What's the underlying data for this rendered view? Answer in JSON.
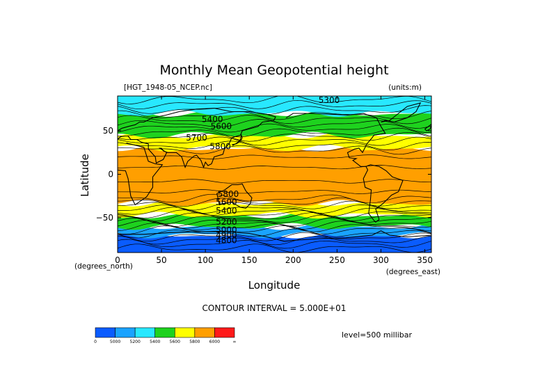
{
  "figure": {
    "title": "Monthly Mean Geopotential height",
    "file_label": "[HGT_1948-05_NCEP.nc]",
    "units_label": "(units:m)",
    "contour_interval": "CONTOUR INTERVAL = 5.000E+01",
    "level": "level=500 millibar",
    "x_unit_note": "(degrees_east)",
    "y_unit_note": "(degrees_north)"
  },
  "chart_data": {
    "type": "heatmap",
    "title": "Monthly Mean Geopotential height",
    "xlabel": "Longitude",
    "ylabel": "Latitude",
    "xlim": [
      0,
      357.5
    ],
    "ylim": [
      -90,
      90
    ],
    "xticks": [
      0,
      50,
      100,
      150,
      200,
      250,
      300,
      350
    ],
    "yticks": [
      -50,
      0,
      50
    ],
    "grid": false,
    "colorbar": {
      "colors": [
        "#0a5cff",
        "#1aa3ff",
        "#28e8ff",
        "#1ed21e",
        "#ffff00",
        "#ff9f00",
        "#ff1a1a"
      ],
      "labels": [
        "0",
        "5000",
        "5200",
        "5400",
        "5600",
        "5800",
        "6000",
        "∞"
      ]
    },
    "contour_labels": [
      {
        "lon": 241,
        "lat": 82,
        "text": "5300"
      },
      {
        "lon": 108,
        "lat": 60,
        "text": "5400"
      },
      {
        "lon": 118,
        "lat": 52,
        "text": "5600"
      },
      {
        "lon": 90,
        "lat": 39,
        "text": "5700"
      },
      {
        "lon": 117,
        "lat": 29,
        "text": "5800"
      },
      {
        "lon": 126,
        "lat": -26,
        "text": "5800"
      },
      {
        "lon": 124,
        "lat": -35,
        "text": "5600"
      },
      {
        "lon": 124,
        "lat": -45,
        "text": "5400"
      },
      {
        "lon": 124,
        "lat": -58,
        "text": "5200"
      },
      {
        "lon": 124,
        "lat": -67,
        "text": "5000"
      },
      {
        "lon": 124,
        "lat": -73,
        "text": "4900"
      },
      {
        "lon": 124,
        "lat": -79,
        "text": "4800"
      }
    ],
    "bands": [
      {
        "level": 5000,
        "color": "#0a5cff",
        "north": -70,
        "south": -90
      },
      {
        "level": 5200,
        "color": "#1aa3ff",
        "north": -60,
        "south": -70
      },
      {
        "level": 5400,
        "color": "#1ed21e",
        "north": -47,
        "south": -60
      },
      {
        "level": 5600,
        "color": "#ffff00",
        "north": -33,
        "south": -47
      },
      {
        "level": 5800,
        "color": "#ff9f00",
        "north": 30,
        "south": -33
      },
      {
        "level": 5600,
        "color": "#ffff00",
        "north": 45,
        "south": 30
      },
      {
        "level": 5400,
        "color": "#1ed21e",
        "north": 70,
        "south": 45
      },
      {
        "level": 5200,
        "color": "#28e8ff",
        "north": 90,
        "south": 70
      }
    ]
  }
}
